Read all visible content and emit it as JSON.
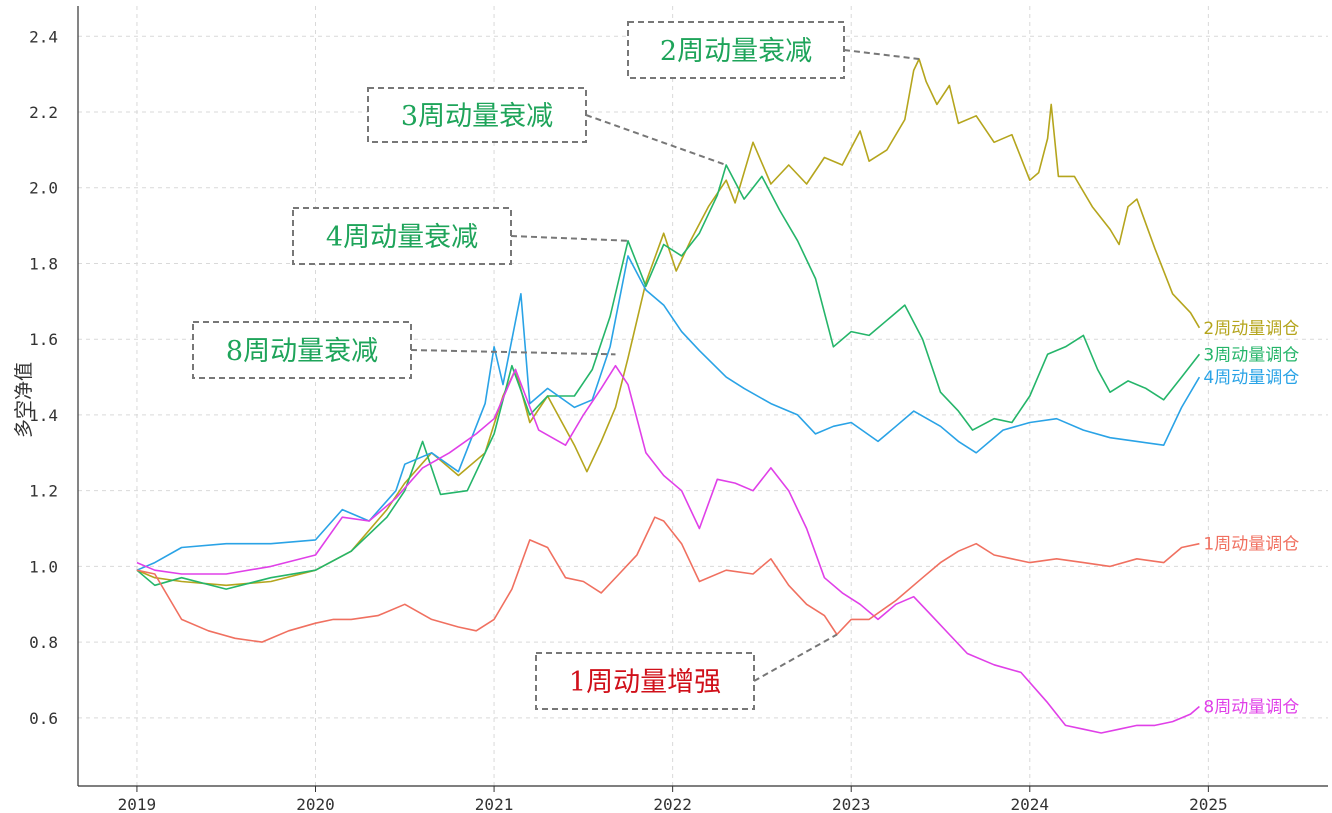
{
  "chart_data": {
    "type": "line",
    "title": "",
    "xlabel": "",
    "ylabel": "多空净值",
    "x_ticks": [
      "2019",
      "2020",
      "2021",
      "2022",
      "2023",
      "2024",
      "2025"
    ],
    "y_ticks": [
      "0.6",
      "0.8",
      "1.0",
      "1.2",
      "1.4",
      "1.6",
      "1.8",
      "2.0",
      "2.2",
      "2.4"
    ],
    "xlim": [
      2018.67,
      2025.67
    ],
    "ylim": [
      0.42,
      2.48
    ],
    "grid": true,
    "legend": "end-of-line labels",
    "series": [
      {
        "name": "2周动量调仓",
        "color": "#b5a51d",
        "points": [
          [
            2019.0,
            0.99
          ],
          [
            2019.1,
            0.97
          ],
          [
            2019.25,
            0.96
          ],
          [
            2019.5,
            0.95
          ],
          [
            2019.75,
            0.96
          ],
          [
            2020.0,
            0.99
          ],
          [
            2020.2,
            1.04
          ],
          [
            2020.4,
            1.15
          ],
          [
            2020.5,
            1.22
          ],
          [
            2020.65,
            1.3
          ],
          [
            2020.8,
            1.24
          ],
          [
            2020.95,
            1.3
          ],
          [
            2021.05,
            1.45
          ],
          [
            2021.12,
            1.52
          ],
          [
            2021.2,
            1.38
          ],
          [
            2021.3,
            1.45
          ],
          [
            2021.45,
            1.32
          ],
          [
            2021.52,
            1.25
          ],
          [
            2021.6,
            1.33
          ],
          [
            2021.68,
            1.42
          ],
          [
            2021.75,
            1.55
          ],
          [
            2021.85,
            1.75
          ],
          [
            2021.95,
            1.88
          ],
          [
            2022.02,
            1.78
          ],
          [
            2022.1,
            1.86
          ],
          [
            2022.2,
            1.95
          ],
          [
            2022.3,
            2.02
          ],
          [
            2022.35,
            1.96
          ],
          [
            2022.45,
            2.12
          ],
          [
            2022.55,
            2.01
          ],
          [
            2022.65,
            2.06
          ],
          [
            2022.75,
            2.01
          ],
          [
            2022.85,
            2.08
          ],
          [
            2022.95,
            2.06
          ],
          [
            2023.05,
            2.15
          ],
          [
            2023.1,
            2.07
          ],
          [
            2023.2,
            2.1
          ],
          [
            2023.3,
            2.18
          ],
          [
            2023.35,
            2.31
          ],
          [
            2023.38,
            2.34
          ],
          [
            2023.42,
            2.28
          ],
          [
            2023.48,
            2.22
          ],
          [
            2023.55,
            2.27
          ],
          [
            2023.6,
            2.17
          ],
          [
            2023.7,
            2.19
          ],
          [
            2023.8,
            2.12
          ],
          [
            2023.9,
            2.14
          ],
          [
            2024.0,
            2.02
          ],
          [
            2024.05,
            2.04
          ],
          [
            2024.1,
            2.13
          ],
          [
            2024.12,
            2.22
          ],
          [
            2024.16,
            2.03
          ],
          [
            2024.25,
            2.03
          ],
          [
            2024.35,
            1.95
          ],
          [
            2024.45,
            1.89
          ],
          [
            2024.5,
            1.85
          ],
          [
            2024.55,
            1.95
          ],
          [
            2024.6,
            1.97
          ],
          [
            2024.7,
            1.84
          ],
          [
            2024.8,
            1.72
          ],
          [
            2024.9,
            1.67
          ],
          [
            2024.95,
            1.63
          ]
        ]
      },
      {
        "name": "3周动量调仓",
        "color": "#25b56a",
        "points": [
          [
            2019.0,
            0.99
          ],
          [
            2019.1,
            0.95
          ],
          [
            2019.25,
            0.97
          ],
          [
            2019.5,
            0.94
          ],
          [
            2019.75,
            0.97
          ],
          [
            2020.0,
            0.99
          ],
          [
            2020.2,
            1.04
          ],
          [
            2020.4,
            1.13
          ],
          [
            2020.5,
            1.2
          ],
          [
            2020.6,
            1.33
          ],
          [
            2020.7,
            1.19
          ],
          [
            2020.85,
            1.2
          ],
          [
            2021.0,
            1.35
          ],
          [
            2021.1,
            1.53
          ],
          [
            2021.2,
            1.4
          ],
          [
            2021.3,
            1.45
          ],
          [
            2021.45,
            1.45
          ],
          [
            2021.55,
            1.52
          ],
          [
            2021.65,
            1.66
          ],
          [
            2021.75,
            1.86
          ],
          [
            2021.85,
            1.74
          ],
          [
            2021.95,
            1.85
          ],
          [
            2022.05,
            1.82
          ],
          [
            2022.15,
            1.88
          ],
          [
            2022.25,
            1.98
          ],
          [
            2022.3,
            2.06
          ],
          [
            2022.4,
            1.97
          ],
          [
            2022.5,
            2.03
          ],
          [
            2022.6,
            1.94
          ],
          [
            2022.7,
            1.86
          ],
          [
            2022.8,
            1.76
          ],
          [
            2022.9,
            1.58
          ],
          [
            2023.0,
            1.62
          ],
          [
            2023.1,
            1.61
          ],
          [
            2023.2,
            1.65
          ],
          [
            2023.3,
            1.69
          ],
          [
            2023.4,
            1.6
          ],
          [
            2023.5,
            1.46
          ],
          [
            2023.6,
            1.41
          ],
          [
            2023.68,
            1.36
          ],
          [
            2023.8,
            1.39
          ],
          [
            2023.9,
            1.38
          ],
          [
            2024.0,
            1.45
          ],
          [
            2024.1,
            1.56
          ],
          [
            2024.2,
            1.58
          ],
          [
            2024.3,
            1.61
          ],
          [
            2024.38,
            1.52
          ],
          [
            2024.45,
            1.46
          ],
          [
            2024.55,
            1.49
          ],
          [
            2024.65,
            1.47
          ],
          [
            2024.75,
            1.44
          ],
          [
            2024.85,
            1.5
          ],
          [
            2024.95,
            1.56
          ]
        ]
      },
      {
        "name": "4周动量调仓",
        "color": "#2aa3e6",
        "points": [
          [
            2019.0,
            0.99
          ],
          [
            2019.1,
            1.01
          ],
          [
            2019.25,
            1.05
          ],
          [
            2019.5,
            1.06
          ],
          [
            2019.75,
            1.06
          ],
          [
            2020.0,
            1.07
          ],
          [
            2020.15,
            1.15
          ],
          [
            2020.3,
            1.12
          ],
          [
            2020.45,
            1.2
          ],
          [
            2020.5,
            1.27
          ],
          [
            2020.65,
            1.3
          ],
          [
            2020.8,
            1.25
          ],
          [
            2020.95,
            1.43
          ],
          [
            2021.0,
            1.58
          ],
          [
            2021.05,
            1.48
          ],
          [
            2021.15,
            1.72
          ],
          [
            2021.2,
            1.43
          ],
          [
            2021.3,
            1.47
          ],
          [
            2021.45,
            1.42
          ],
          [
            2021.55,
            1.44
          ],
          [
            2021.65,
            1.58
          ],
          [
            2021.75,
            1.82
          ],
          [
            2021.85,
            1.73
          ],
          [
            2021.95,
            1.69
          ],
          [
            2022.05,
            1.62
          ],
          [
            2022.15,
            1.57
          ],
          [
            2022.3,
            1.5
          ],
          [
            2022.4,
            1.47
          ],
          [
            2022.55,
            1.43
          ],
          [
            2022.7,
            1.4
          ],
          [
            2022.8,
            1.35
          ],
          [
            2022.9,
            1.37
          ],
          [
            2023.0,
            1.38
          ],
          [
            2023.15,
            1.33
          ],
          [
            2023.25,
            1.37
          ],
          [
            2023.35,
            1.41
          ],
          [
            2023.5,
            1.37
          ],
          [
            2023.6,
            1.33
          ],
          [
            2023.7,
            1.3
          ],
          [
            2023.85,
            1.36
          ],
          [
            2024.0,
            1.38
          ],
          [
            2024.15,
            1.39
          ],
          [
            2024.3,
            1.36
          ],
          [
            2024.45,
            1.34
          ],
          [
            2024.6,
            1.33
          ],
          [
            2024.75,
            1.32
          ],
          [
            2024.85,
            1.42
          ],
          [
            2024.95,
            1.5
          ]
        ]
      },
      {
        "name": "8周动量调仓",
        "color": "#e040e8",
        "points": [
          [
            2019.0,
            1.01
          ],
          [
            2019.1,
            0.99
          ],
          [
            2019.25,
            0.98
          ],
          [
            2019.5,
            0.98
          ],
          [
            2019.75,
            1.0
          ],
          [
            2020.0,
            1.03
          ],
          [
            2020.15,
            1.13
          ],
          [
            2020.3,
            1.12
          ],
          [
            2020.45,
            1.18
          ],
          [
            2020.6,
            1.26
          ],
          [
            2020.75,
            1.3
          ],
          [
            2020.9,
            1.35
          ],
          [
            2021.0,
            1.39
          ],
          [
            2021.12,
            1.52
          ],
          [
            2021.25,
            1.36
          ],
          [
            2021.4,
            1.32
          ],
          [
            2021.5,
            1.4
          ],
          [
            2021.6,
            1.47
          ],
          [
            2021.68,
            1.53
          ],
          [
            2021.75,
            1.48
          ],
          [
            2021.85,
            1.3
          ],
          [
            2021.95,
            1.24
          ],
          [
            2022.05,
            1.2
          ],
          [
            2022.15,
            1.1
          ],
          [
            2022.25,
            1.23
          ],
          [
            2022.35,
            1.22
          ],
          [
            2022.45,
            1.2
          ],
          [
            2022.55,
            1.26
          ],
          [
            2022.65,
            1.2
          ],
          [
            2022.75,
            1.1
          ],
          [
            2022.85,
            0.97
          ],
          [
            2022.95,
            0.93
          ],
          [
            2023.05,
            0.9
          ],
          [
            2023.15,
            0.86
          ],
          [
            2023.25,
            0.9
          ],
          [
            2023.35,
            0.92
          ],
          [
            2023.45,
            0.87
          ],
          [
            2023.55,
            0.82
          ],
          [
            2023.65,
            0.77
          ],
          [
            2023.8,
            0.74
          ],
          [
            2023.95,
            0.72
          ],
          [
            2024.1,
            0.64
          ],
          [
            2024.2,
            0.58
          ],
          [
            2024.3,
            0.57
          ],
          [
            2024.4,
            0.56
          ],
          [
            2024.5,
            0.57
          ],
          [
            2024.6,
            0.58
          ],
          [
            2024.7,
            0.58
          ],
          [
            2024.8,
            0.59
          ],
          [
            2024.9,
            0.61
          ],
          [
            2024.95,
            0.63
          ]
        ]
      },
      {
        "name": "1周动量调仓",
        "color": "#f07060",
        "points": [
          [
            2019.0,
            0.99
          ],
          [
            2019.1,
            0.98
          ],
          [
            2019.25,
            0.86
          ],
          [
            2019.4,
            0.83
          ],
          [
            2019.55,
            0.81
          ],
          [
            2019.7,
            0.8
          ],
          [
            2019.85,
            0.83
          ],
          [
            2020.0,
            0.85
          ],
          [
            2020.1,
            0.86
          ],
          [
            2020.2,
            0.86
          ],
          [
            2020.35,
            0.87
          ],
          [
            2020.5,
            0.9
          ],
          [
            2020.65,
            0.86
          ],
          [
            2020.8,
            0.84
          ],
          [
            2020.9,
            0.83
          ],
          [
            2021.0,
            0.86
          ],
          [
            2021.1,
            0.94
          ],
          [
            2021.2,
            1.07
          ],
          [
            2021.3,
            1.05
          ],
          [
            2021.4,
            0.97
          ],
          [
            2021.5,
            0.96
          ],
          [
            2021.6,
            0.93
          ],
          [
            2021.7,
            0.98
          ],
          [
            2021.8,
            1.03
          ],
          [
            2021.9,
            1.13
          ],
          [
            2021.95,
            1.12
          ],
          [
            2022.05,
            1.06
          ],
          [
            2022.15,
            0.96
          ],
          [
            2022.3,
            0.99
          ],
          [
            2022.45,
            0.98
          ],
          [
            2022.55,
            1.02
          ],
          [
            2022.65,
            0.95
          ],
          [
            2022.75,
            0.9
          ],
          [
            2022.85,
            0.87
          ],
          [
            2022.92,
            0.82
          ],
          [
            2023.0,
            0.86
          ],
          [
            2023.1,
            0.86
          ],
          [
            2023.25,
            0.91
          ],
          [
            2023.4,
            0.97
          ],
          [
            2023.5,
            1.01
          ],
          [
            2023.6,
            1.04
          ],
          [
            2023.7,
            1.06
          ],
          [
            2023.8,
            1.03
          ],
          [
            2023.9,
            1.02
          ],
          [
            2024.0,
            1.01
          ],
          [
            2024.15,
            1.02
          ],
          [
            2024.3,
            1.01
          ],
          [
            2024.45,
            1.0
          ],
          [
            2024.6,
            1.02
          ],
          [
            2024.75,
            1.01
          ],
          [
            2024.85,
            1.05
          ],
          [
            2024.95,
            1.06
          ]
        ]
      }
    ],
    "annotations": [
      {
        "text": "2周动量衰减",
        "color": "#1ea45a",
        "target": [
          2023.38,
          2.34
        ]
      },
      {
        "text": "3周动量衰减",
        "color": "#1ea45a",
        "target": [
          2022.3,
          2.06
        ]
      },
      {
        "text": "4周动量衰减",
        "color": "#1ea45a",
        "target": [
          2021.75,
          1.86
        ]
      },
      {
        "text": "8周动量衰减",
        "color": "#1ea45a",
        "target": [
          2021.68,
          1.56
        ]
      },
      {
        "text": "1周动量增强",
        "color": "#d0101a",
        "target": [
          2022.92,
          0.82
        ]
      }
    ]
  }
}
